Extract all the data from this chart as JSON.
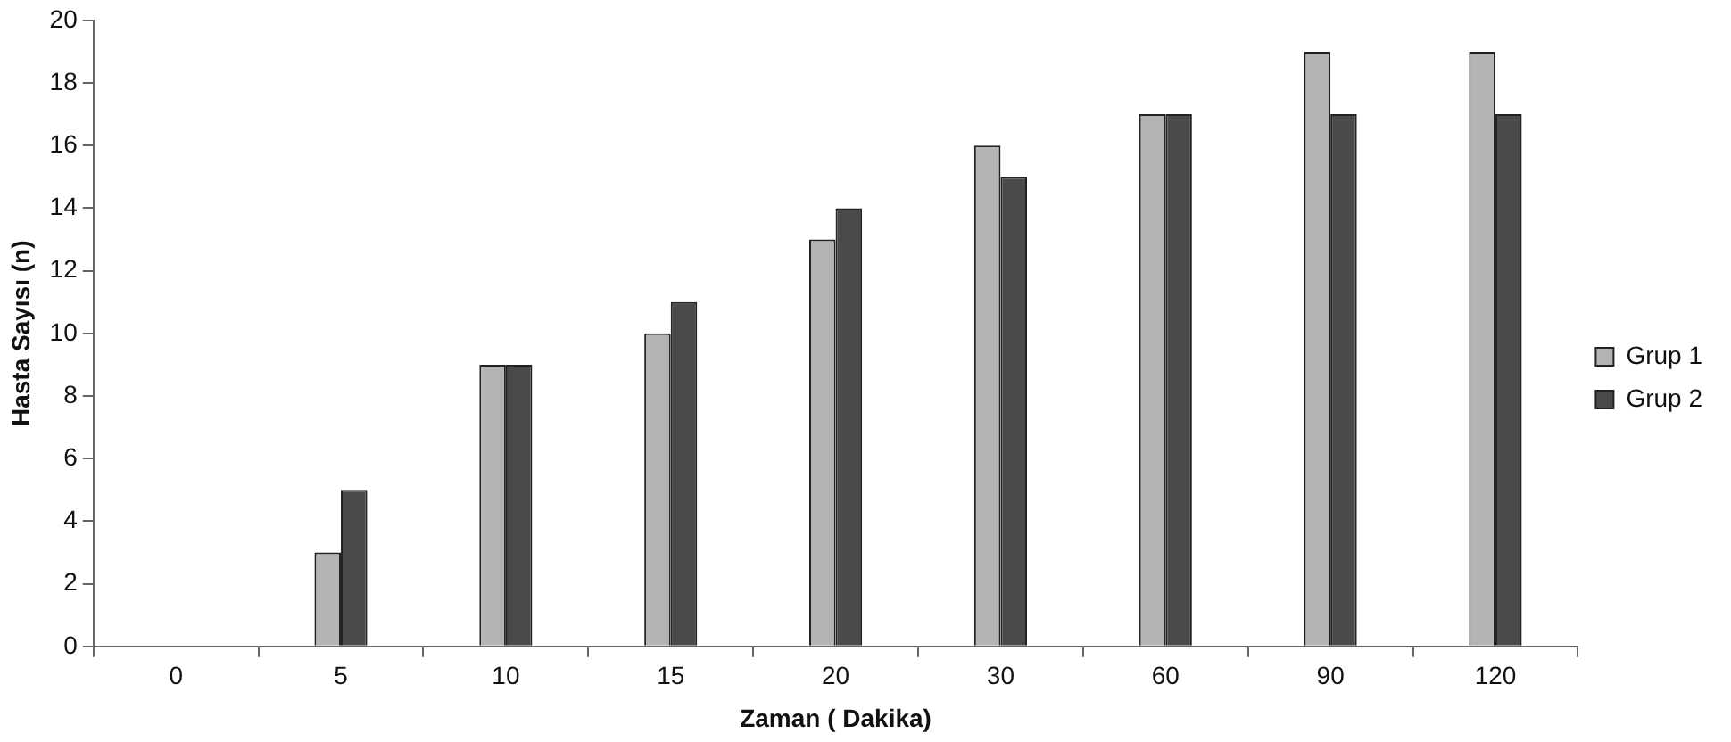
{
  "chart_data": {
    "type": "bar",
    "xlabel": "Zaman ( Dakika)",
    "ylabel": "Hasta Sayısı (n)",
    "categories": [
      "0",
      "5",
      "10",
      "15",
      "20",
      "30",
      "60",
      "90",
      "120"
    ],
    "series": [
      {
        "name": "Grup 1",
        "color": "#b4b4b4",
        "values": [
          0,
          3,
          9,
          10,
          13,
          16,
          17,
          19,
          19
        ]
      },
      {
        "name": "Grup 2",
        "color": "#4a4a4a",
        "values": [
          0,
          5,
          9,
          11,
          14,
          15,
          17,
          17,
          17
        ]
      }
    ],
    "ylim": [
      0,
      20
    ],
    "yticks": [
      0,
      2,
      4,
      6,
      8,
      10,
      12,
      14,
      16,
      18,
      20
    ],
    "grid": false,
    "legend": "right"
  }
}
